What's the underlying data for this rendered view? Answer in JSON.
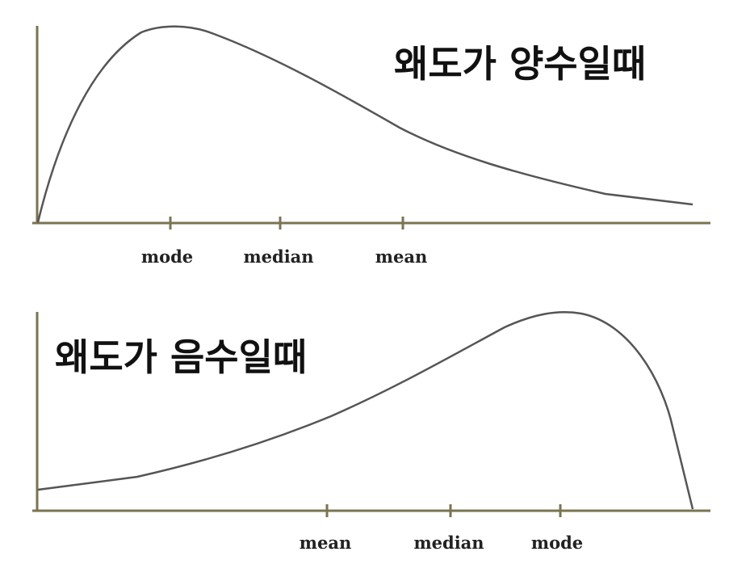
{
  "colors": {
    "axis": "#7a7450",
    "curve": "#555555",
    "text": "#111111"
  },
  "chart_data": [
    {
      "type": "line",
      "title": "왜도가 양수일때",
      "x_ticks": [
        "mode",
        "median",
        "mean"
      ],
      "grid": false,
      "legend": "none"
    },
    {
      "type": "line",
      "title": "왜도가 음수일때",
      "x_ticks": [
        "mean",
        "median",
        "mode"
      ],
      "grid": false,
      "legend": "none"
    }
  ]
}
